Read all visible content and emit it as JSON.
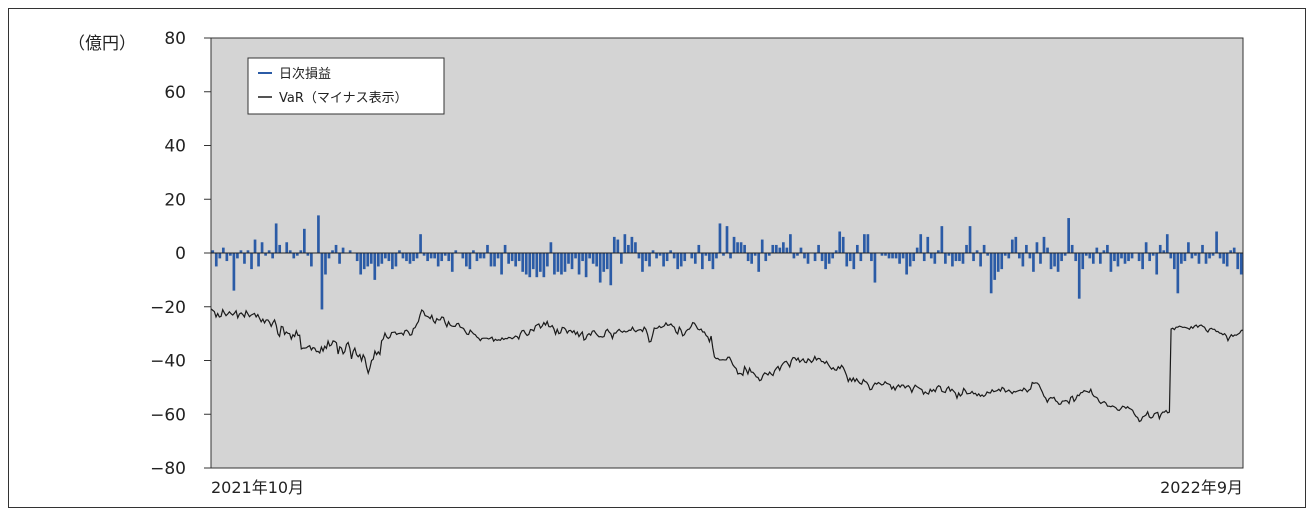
{
  "chart_data": {
    "type": "bar+line",
    "unit_label": "（億円）",
    "ylim": [
      -80,
      80
    ],
    "yticks": [
      80,
      60,
      40,
      20,
      0,
      -20,
      -40,
      -60,
      -80
    ],
    "ytick_labels": [
      "80",
      "60",
      "40",
      "20",
      "0",
      "−20",
      "−40",
      "−60",
      "−80"
    ],
    "x_start_label": "2021年10月",
    "x_end_label": "2022年9月",
    "legend_position": "top-left",
    "grid": false,
    "colors": {
      "bars": "#2b5ba6",
      "var_line": "#1a1a1a",
      "plot_bg": "#d4d4d4"
    },
    "series": [
      {
        "name": "日次損益",
        "kind": "bar",
        "values": [
          1,
          -5,
          -2,
          2,
          -3,
          -1,
          -14,
          -2,
          1,
          -4,
          1,
          -6,
          5,
          -5,
          4,
          -1,
          1,
          -2,
          11,
          3,
          0,
          4,
          1,
          -2,
          -1,
          1,
          9,
          -1,
          -5,
          0,
          14,
          -21,
          -8,
          -2,
          1,
          3,
          -4,
          2,
          0,
          1,
          0,
          -3,
          -8,
          -6,
          -5,
          -4,
          -10,
          -5,
          -4,
          -2,
          -3,
          -6,
          -5,
          1,
          -2,
          -3,
          -4,
          -3,
          -2,
          7,
          -1,
          -3,
          -2,
          -2,
          -5,
          -3,
          -1,
          -3,
          -7,
          1,
          0,
          -2,
          -5,
          -6,
          1,
          -3,
          -2,
          -2,
          3,
          -5,
          -5,
          -2,
          -8,
          3,
          -4,
          -3,
          -5,
          -3,
          -7,
          -8,
          -9,
          -6,
          -9,
          -7,
          -9,
          -5,
          4,
          -8,
          -7,
          -8,
          -7,
          -4,
          -6,
          -2,
          -8,
          -3,
          -9,
          -2,
          -4,
          -5,
          -11,
          -7,
          -6,
          -12,
          6,
          5,
          -4,
          7,
          3,
          6,
          4,
          -2,
          -7,
          -3,
          -5,
          1,
          -2,
          -1,
          -5,
          -3,
          1,
          -2,
          -6,
          -5,
          -3,
          0,
          -2,
          -4,
          3,
          -6,
          -1,
          -3,
          -6,
          -2,
          11,
          -1,
          10,
          -2,
          6,
          4,
          4,
          3,
          -3,
          -4,
          -1,
          -7,
          5,
          -3,
          -1,
          3,
          3,
          2,
          4,
          2,
          7,
          -2,
          -1,
          2,
          -2,
          -4,
          0,
          -3,
          3,
          -3,
          -6,
          -4,
          -2,
          1,
          8,
          6,
          -5,
          -3,
          -6,
          3,
          -3,
          7,
          7,
          -3,
          -11,
          0,
          -1,
          -1,
          -2,
          -2,
          -2,
          -4,
          -2,
          -8,
          -5,
          -3,
          2,
          7,
          -3,
          6,
          -2,
          -4,
          1,
          10,
          -4,
          -1,
          -5,
          -3,
          -3,
          -4,
          3,
          10,
          -3,
          1,
          -5,
          3,
          -1,
          -15,
          -10,
          -7,
          -6,
          -1,
          -2,
          5,
          6,
          -2,
          -5,
          3,
          -2,
          -7,
          4,
          -4,
          6,
          2,
          -6,
          -5,
          -7,
          -3,
          -1,
          13,
          3,
          -3,
          -17,
          -6,
          -1,
          -2,
          -4,
          2,
          -4,
          1,
          3,
          -7,
          -3,
          -5,
          -2,
          -4,
          -3,
          -2,
          0,
          -3,
          -6,
          4,
          -3,
          -1,
          -8,
          3,
          1,
          7,
          -2,
          -6,
          -15,
          -4,
          -3,
          4,
          -2,
          -1,
          -4,
          3,
          -4,
          -2,
          -1,
          8,
          -2,
          -4,
          -5,
          1,
          2,
          -6,
          -8
        ]
      },
      {
        "name": "VaR（マイナス表示）",
        "kind": "line",
        "values": [
          -20.8,
          -21.3,
          -21.8,
          -23.8,
          -22.5,
          -23.8,
          -23.6,
          -21.1,
          -22.3,
          -23.3,
          -22.7,
          -21.9,
          -22.6,
          -23.1,
          -22.4,
          -21.5,
          -24.1,
          -22.7,
          -22.3,
          -22.9,
          -23.8,
          -21.5,
          -22.6,
          -23.7,
          -23.1,
          -22.8,
          -22.5,
          -23.8,
          -22.9,
          -24.3,
          -25.6,
          -24.6,
          -26.0,
          -24.9,
          -24.9,
          -25.8,
          -27.3,
          -25.9,
          -24.9,
          -26.9,
          -30.1,
          -31.0,
          -27.3,
          -27.5,
          -30.3,
          -29.4,
          -29.9,
          -30.0,
          -32.0,
          -30.4,
          -31.1,
          -29.0,
          -30.7,
          -30.6,
          -35.7,
          -35.4,
          -35.4,
          -35.3,
          -34.8,
          -34.5,
          -36.1,
          -35.2,
          -35.4,
          -36.7,
          -36.6,
          -37.2,
          -35.0,
          -36.5,
          -34.7,
          -35.5,
          -32.8,
          -34.6,
          -34.2,
          -32.7,
          -32.9,
          -33.4,
          -37.6,
          -34.9,
          -35.4,
          -37.5,
          -36.7,
          -34.0,
          -33.3,
          -35.5,
          -39.4,
          -36.6,
          -35.4,
          -37.8,
          -38.6,
          -37.8,
          -40.1,
          -37.9,
          -39.1,
          -42.4,
          -44.7,
          -42.8,
          -40.0,
          -39.5,
          -36.5,
          -37.8,
          -36.8,
          -37.7,
          -32.7,
          -32.0,
          -29.8,
          -31.2,
          -31.8,
          -31.3,
          -29.6,
          -29.5,
          -29.4,
          -30.3,
          -30.0,
          -29.9,
          -29.8,
          -30.5,
          -28.9,
          -28.7,
          -29.4,
          -30.6,
          -30.4,
          -28.1,
          -27.8,
          -26.5,
          -25.5,
          -23.0,
          -21.2,
          -21.7,
          -23.3,
          -23.5,
          -23.8,
          -24.4,
          -23.2,
          -25.3,
          -26.1,
          -24.4,
          -24.9,
          -24.9,
          -23.8,
          -24.0,
          -26.0,
          -27.4,
          -25.6,
          -26.8,
          -27.2,
          -27.3,
          -27.3,
          -26.3,
          -26.2,
          -27.6,
          -27.8,
          -28.1,
          -29.2,
          -30.2,
          -30.3,
          -28.7,
          -29.4,
          -30.1,
          -30.4,
          -31.3,
          -31.7,
          -32.6,
          -31.8,
          -31.7,
          -31.7,
          -31.7,
          -32.0,
          -31.7,
          -31.3,
          -32.8,
          -32.1,
          -32.5,
          -32.3,
          -32.5,
          -31.6,
          -32.2,
          -31.8,
          -31.9,
          -31.4,
          -31.5,
          -31.9,
          -31.5,
          -30.9,
          -31.1,
          -32.0,
          -30.0,
          -28.9,
          -28.8,
          -29.9,
          -30.7,
          -30.3,
          -28.5,
          -28.6,
          -29.0,
          -27.1,
          -26.7,
          -26.4,
          -27.9,
          -27.2,
          -25.9,
          -26.8,
          -25.5,
          -27.4,
          -27.5,
          -27.0,
          -28.2,
          -30.2,
          -28.4,
          -30.0,
          -29.7,
          -27.7,
          -27.8,
          -28.4,
          -29.8,
          -28.9,
          -28.8,
          -29.6,
          -28.9,
          -30.3,
          -29.4,
          -31.1,
          -30.2,
          -29.4,
          -32.4,
          -32.0,
          -30.5,
          -30.0,
          -30.6,
          -29.1,
          -28.9,
          -29.8,
          -30.6,
          -31.2,
          -31.1,
          -31.3,
          -31.1,
          -29.0,
          -28.4,
          -29.4,
          -30.0,
          -31.8,
          -29.8,
          -29.8,
          -29.0,
          -28.4,
          -29.1,
          -29.5,
          -29.0,
          -29.4,
          -29.2,
          -28.7,
          -28.8,
          -27.6,
          -28.8,
          -29.3,
          -28.8,
          -28.6,
          -28.5,
          -29.2,
          -27.6,
          -28.4,
          -30.3,
          -33.1,
          -32.9,
          -30.6,
          -27.9,
          -28.1,
          -27.9,
          -27.2,
          -27.8,
          -27.5,
          -27.1,
          -26.0,
          -26.9,
          -26.8,
          -26.4,
          -27.2,
          -27.6,
          -29.4,
          -30.1,
          -27.6,
          -28.7,
          -30.8,
          -30.4,
          -29.1,
          -28.5,
          -28.3,
          -27.4,
          -25.9,
          -26.1,
          -27.1,
          -28.3,
          -28.6,
          -28.3,
          -29.4,
          -29.4,
          -30.7,
          -31.2,
          -33.0,
          -30.9,
          -35.3,
          -38.7,
          -39.3,
          -39.2,
          -39.8,
          -39.8,
          -39.7,
          -39.8,
          -39.8,
          -38.8,
          -38.8,
          -40.1,
          -41.6,
          -42.4,
          -43.0,
          -45.0,
          -44.8,
          -44.9,
          -45.5,
          -42.3,
          -43.5,
          -45.0,
          -42.9,
          -44.3,
          -44.4,
          -45.1,
          -46.1,
          -46.3,
          -47.5,
          -47.2,
          -45.5,
          -44.6,
          -44.9,
          -45.4,
          -44.3,
          -45.1,
          -45.6,
          -43.8,
          -42.9,
          -42.2,
          -43.6,
          -42.0,
          -41.1,
          -40.5,
          -40.3,
          -41.3,
          -42.4,
          -40.0,
          -38.9,
          -39.0,
          -39.9,
          -39.1,
          -40.6,
          -40.0,
          -39.4,
          -40.6,
          -40.8,
          -39.4,
          -39.9,
          -40.7,
          -40.0,
          -38.5,
          -39.8,
          -39.2,
          -39.3,
          -40.4,
          -40.4,
          -41.1,
          -40.3,
          -41.4,
          -42.4,
          -43.2,
          -42.7,
          -43.5,
          -43.6,
          -42.3,
          -43.0,
          -41.8,
          -42.6,
          -44.0,
          -45.6,
          -47.8,
          -46.6,
          -47.7,
          -46.5,
          -47.8,
          -46.8,
          -47.8,
          -48.5,
          -48.8,
          -47.1,
          -47.8,
          -48.1,
          -49.1,
          -50.9,
          -50.7,
          -49.3,
          -48.4,
          -48.8,
          -48.2,
          -48.6,
          -49.1,
          -48.9,
          -47.9,
          -48.5,
          -48.7,
          -49.0,
          -50.6,
          -49.7,
          -51.0,
          -49.8,
          -49.1,
          -49.9,
          -49.1,
          -49.2,
          -50.2,
          -49.6,
          -49.4,
          -50.2,
          -51.8,
          -50.3,
          -49.2,
          -49.7,
          -50.1,
          -50.5,
          -50.8,
          -52.5,
          -51.7,
          -52.2,
          -52.5,
          -50.7,
          -51.5,
          -50.8,
          -51.6,
          -50.0,
          -49.4,
          -49.7,
          -51.5,
          -51.7,
          -51.9,
          -50.4,
          -49.8,
          -51.4,
          -50.7,
          -51.4,
          -52.1,
          -54.0,
          -52.1,
          -53.2,
          -52.6,
          -50.4,
          -51.2,
          -52.4,
          -52.3,
          -52.2,
          -51.5,
          -52.4,
          -52.2,
          -53.1,
          -52.4,
          -53.3,
          -52.8,
          -53.4,
          -52.9,
          -51.7,
          -52.0,
          -52.1,
          -50.9,
          -51.6,
          -51.4,
          -51.2,
          -50.7,
          -51.4,
          -50.0,
          -50.4,
          -51.7,
          -51.4,
          -51.0,
          -51.6,
          -52.3,
          -51.5,
          -51.7,
          -51.4,
          -51.2,
          -51.0,
          -51.3,
          -50.3,
          -50.8,
          -51.7,
          -51.0,
          -50.6,
          -48.2,
          -48.5,
          -48.3,
          -48.4,
          -49.0,
          -50.4,
          -51.7,
          -53.3,
          -54.0,
          -55.5,
          -54.3,
          -53.8,
          -54.0,
          -53.7,
          -55.0,
          -55.4,
          -56.3,
          -56.2,
          -55.1,
          -55.1,
          -54.9,
          -55.1,
          -56.0,
          -53.7,
          -53.3,
          -55.2,
          -54.4,
          -52.9,
          -53.1,
          -52.0,
          -51.9,
          -51.2,
          -51.4,
          -51.6,
          -51.9,
          -50.7,
          -52.6,
          -53.4,
          -53.6,
          -54.0,
          -55.3,
          -56.0,
          -55.6,
          -55.3,
          -55.8,
          -57.0,
          -57.0,
          -57.2,
          -56.9,
          -57.2,
          -57.6,
          -58.4,
          -58.6,
          -57.9,
          -57.0,
          -57.2,
          -57.8,
          -57.2,
          -57.8,
          -58.1,
          -58.5,
          -59.9,
          -60.8,
          -61.2,
          -62.7,
          -62.4,
          -61.0,
          -60.7,
          -60.3,
          -59.1,
          -61.0,
          -61.4,
          -61.1,
          -59.8,
          -59.5,
          -59.3,
          -61.6,
          -60.0,
          -59.2,
          -59.2,
          -58.6,
          -59.5,
          -59.2,
          -28.3,
          -28.0,
          -28.5,
          -27.6,
          -27.6,
          -27.2,
          -27.4,
          -27.7,
          -27.6,
          -27.8,
          -28.0,
          -28.4,
          -27.4,
          -28.0,
          -27.2,
          -26.8,
          -27.6,
          -27.0,
          -26.8,
          -27.3,
          -27.6,
          -28.8,
          -29.4,
          -28.3,
          -28.0,
          -28.4,
          -28.4,
          -29.2,
          -29.2,
          -29.8,
          -29.9,
          -30.4,
          -30.0,
          -30.8,
          -32.6,
          -31.4,
          -30.4,
          -31.0,
          -30.5,
          -30.6,
          -30.2,
          -29.8,
          -28.8,
          -28.7
        ]
      }
    ],
    "legend": [
      {
        "label": "日次損益",
        "color": "#2b5ba6"
      },
      {
        "label": "VaR（マイナス表示）",
        "color": "#1a1a1a"
      }
    ]
  }
}
